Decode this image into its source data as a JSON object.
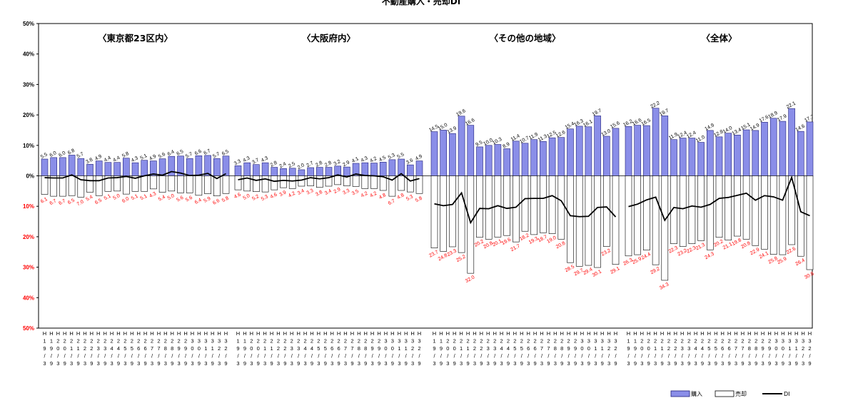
{
  "chart_data": {
    "type": "bar",
    "title": "不動産購入・売却DI",
    "ylim": [
      -50,
      50
    ],
    "y_ticks": [
      "50%",
      "40%",
      "30%",
      "20%",
      "10%",
      "0%",
      "10%",
      "20%",
      "30%",
      "40%",
      "50%"
    ],
    "x_tick_labels": [
      "H\n1\n9\n/\n3",
      "H\n1\n9\n/\n9",
      "H\n2\n0\n/\n3",
      "H\n2\n0\n/\n9",
      "H\n2\n1\n/\n3",
      "H\n2\n1\n/\n9",
      "H\n2\n2\n/\n3",
      "H\n2\n2\n/\n9",
      "H\n2\n3\n/\n3",
      "H\n2\n3\n/\n9",
      "H\n2\n4\n/\n3",
      "H\n2\n4\n/\n9",
      "H\n2\n5\n/\n3",
      "H\n2\n5\n/\n9",
      "H\n2\n6\n/\n3",
      "H\n2\n6\n/\n9",
      "H\n2\n7\n/\n3",
      "H\n2\n7\n/\n9",
      "H\n2\n8\n/\n3",
      "H\n2\n8\n/\n9",
      "H\n2\n9\n/\n3",
      "H\n2\n9\n/\n9",
      "H\n3\n0\n/\n3",
      "H\n3\n0\n/\n9",
      "H\n3\n1\n/\n3",
      "H\n3\n1\n/\n9",
      "H\n3\n2\n/\n3",
      "H\n3\n2\n/\n9"
    ],
    "legend": [
      "購入",
      "売却",
      "DI"
    ],
    "legend_placement": "bottom-right",
    "grid": false,
    "colors": {
      "buy": "#8a8ee8",
      "buy_edge": "#1f1f7a",
      "sell": "#ffffff",
      "sell_edge": "#000000",
      "di": "#000000",
      "sell_label": "#ff0000"
    },
    "panels": [
      {
        "name": "〈東京都23区内〉",
        "x_ticks": [
          "H\n1\n9\n/\n3",
          "H\n1\n9\n/\n9",
          "H\n2\n0\n/\n3",
          "H\n2\n0\n/\n9",
          "H\n2\n1\n/\n3",
          "H\n2\n1\n/\n9",
          "H\n2\n2\n/\n3",
          "H\n2\n2\n/\n9",
          "H\n2\n3\n/\n3",
          "H\n2\n3\n/\n9",
          "H\n2\n4\n/\n3",
          "H\n2\n4\n/\n9",
          "H\n2\n5\n/\n3",
          "H\n2\n5\n/\n9",
          "H\n2\n6\n/\n3",
          "H\n2\n6\n/\n9",
          "H\n2\n7\n/\n3",
          "H\n2\n7\n/\n9",
          "H\n2\n8\n/\n3",
          "H\n2\n8\n/\n9",
          "H\n2\n9\n/\n3",
          "H\n2\n9\n/\n9",
          "H\n3\n0\n/\n3",
          "H\n3\n0\n/\n9",
          "H\n3\n1\n/\n3",
          "H\n3\n1\n/\n9",
          "H\n3\n2\n/\n3",
          "H\n3\n2\n/\n9"
        ],
        "buy": [
          5.5,
          6.0,
          6.0,
          6.8,
          5.7,
          3.8,
          4.9,
          4.4,
          4.4,
          5.8,
          4.3,
          5.1,
          4.9,
          5.6,
          6.4,
          6.5,
          5.7,
          6.6,
          6.7,
          5.7,
          6.5
        ],
        "sell": [
          6.1,
          6.7,
          6.7,
          6.5,
          7.0,
          5.4,
          6.5,
          5.1,
          5.0,
          6.0,
          5.1,
          5.1,
          4.3,
          5.4,
          5.0,
          5.6,
          5.6,
          6.4,
          5.9,
          6.6,
          5.8
        ]
      },
      {
        "name": "〈大阪府内〉",
        "x_ticks": [
          "H\n1\n9\n/\n3",
          "H\n1\n9\n/\n9",
          "H\n2\n0\n/\n3",
          "H\n2\n0\n/\n9",
          "H\n2\n1\n/\n3",
          "H\n2\n1\n/\n9",
          "H\n2\n2\n/\n3",
          "H\n2\n2\n/\n9",
          "H\n2\n3\n/\n3",
          "H\n2\n3\n/\n9",
          "H\n2\n4\n/\n3",
          "H\n2\n4\n/\n9",
          "H\n2\n5\n/\n3",
          "H\n2\n5\n/\n9",
          "H\n2\n6\n/\n3",
          "H\n2\n6\n/\n9",
          "H\n2\n7\n/\n3",
          "H\n2\n7\n/\n9",
          "H\n2\n8\n/\n3",
          "H\n2\n8\n/\n9",
          "H\n2\n9\n/\n3",
          "H\n2\n9\n/\n9",
          "H\n3\n0\n/\n3",
          "H\n3\n0\n/\n9",
          "H\n3\n1\n/\n3",
          "H\n3\n1\n/\n9",
          "H\n3\n2\n/\n3",
          "H\n3\n2\n/\n9"
        ],
        "buy": [
          3.3,
          4.3,
          3.7,
          4.3,
          2.8,
          2.4,
          2.5,
          2.0,
          2.7,
          2.8,
          2.8,
          3.2,
          2.9,
          4.1,
          4.3,
          4.2,
          4.5,
          5.3,
          5.5,
          3.6,
          4.9
        ],
        "sell": [
          4.6,
          5.0,
          5.2,
          5.3,
          4.6,
          3.9,
          4.2,
          3.4,
          3.3,
          3.8,
          3.4,
          2.9,
          3.3,
          3.5,
          4.2,
          4.2,
          4.8,
          6.7,
          4.8,
          5.3,
          5.8
        ]
      },
      {
        "name": "〈その他の地域〉",
        "x_ticks": [
          "H\n1\n9\n/\n3",
          "H\n1\n9\n/\n9",
          "H\n2\n0\n/\n3",
          "H\n2\n0\n/\n9",
          "H\n2\n1\n/\n3",
          "H\n2\n1\n/\n9",
          "H\n2\n2\n/\n3",
          "H\n2\n2\n/\n9",
          "H\n2\n3\n/\n3",
          "H\n2\n3\n/\n9",
          "H\n2\n4\n/\n3",
          "H\n2\n4\n/\n9",
          "H\n2\n5\n/\n3",
          "H\n2\n5\n/\n9",
          "H\n2\n6\n/\n3",
          "H\n2\n6\n/\n9",
          "H\n2\n7\n/\n3",
          "H\n2\n7\n/\n9",
          "H\n2\n8\n/\n3",
          "H\n2\n8\n/\n9",
          "H\n2\n9\n/\n3",
          "H\n2\n9\n/\n9",
          "H\n3\n0\n/\n3",
          "H\n3\n0\n/\n9",
          "H\n3\n1\n/\n3",
          "H\n3\n1\n/\n9",
          "H\n3\n2\n/\n3",
          "H\n3\n2\n/\n9"
        ],
        "buy": [
          14.5,
          15.0,
          13.9,
          19.6,
          16.6,
          9.5,
          10.0,
          10.3,
          8.9,
          11.4,
          10.7,
          11.9,
          11.3,
          12.5,
          12.6,
          15.4,
          16.3,
          16.1,
          19.7,
          13.0,
          15.6
        ],
        "sell": [
          23.7,
          24.8,
          23.3,
          25.2,
          32.0,
          20.2,
          20.8,
          20.1,
          19.6,
          21.7,
          18.2,
          19.3,
          18.7,
          19.0,
          20.8,
          28.5,
          29.7,
          29.4,
          30.1,
          23.2,
          29.1
        ]
      },
      {
        "name": "〈全体〉",
        "x_ticks": [
          "H\n1\n9\n/\n3",
          "H\n1\n9\n/\n9",
          "H\n2\n0\n/\n3",
          "H\n2\n0\n/\n9",
          "H\n2\n1\n/\n3",
          "H\n2\n1\n/\n9",
          "H\n2\n2\n/\n3",
          "H\n2\n2\n/\n9",
          "H\n2\n3\n/\n3",
          "H\n2\n3\n/\n9",
          "H\n2\n4\n/\n3",
          "H\n2\n4\n/\n9",
          "H\n2\n5\n/\n3",
          "H\n2\n5\n/\n9",
          "H\n2\n6\n/\n3",
          "H\n2\n6\n/\n9",
          "H\n2\n7\n/\n3",
          "H\n2\n7\n/\n9",
          "H\n2\n8\n/\n3",
          "H\n2\n8\n/\n9",
          "H\n2\n9\n/\n3",
          "H\n2\n9\n/\n9",
          "H\n3\n0\n/\n3",
          "H\n3\n0\n/\n9",
          "H\n3\n1\n/\n3",
          "H\n3\n1\n/\n9",
          "H\n3\n2\n/\n3",
          "H\n3\n2\n/\n9"
        ],
        "buy": [
          16.2,
          16.6,
          16.5,
          22.2,
          19.7,
          11.9,
          12.4,
          12.4,
          11.0,
          14.9,
          12.8,
          14.0,
          13.4,
          15.1,
          14.9,
          17.6,
          18.9,
          17.9,
          22.1,
          14.6,
          17.7
        ],
        "sell": [
          26.3,
          25.9,
          24.4,
          29.2,
          34.3,
          22.3,
          23.2,
          22.3,
          21.3,
          24.3,
          20.2,
          21.1,
          19.8,
          20.8,
          22.9,
          24.1,
          25.8,
          25.9,
          22.6,
          26.4,
          30.8
        ]
      }
    ]
  }
}
